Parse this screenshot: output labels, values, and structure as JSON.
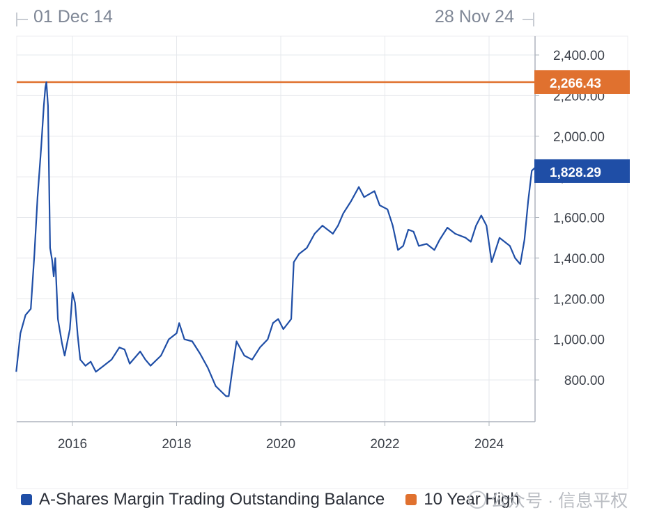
{
  "range": {
    "start_label": "01 Dec 14",
    "end_label": "28 Nov 24"
  },
  "colors": {
    "series": "#1f4ea6",
    "high": "#e0712f",
    "grid": "#e6e8ec",
    "axis_text": "#3a3f48"
  },
  "badges": {
    "high_value": "2,266.43",
    "last_value": "1,828.29"
  },
  "legend": [
    {
      "label": "A-Shares Margin Trading Outstanding Balance",
      "color": "#1f4ea6"
    },
    {
      "label": "10 Year High",
      "color": "#e0712f"
    }
  ],
  "watermark": "公众号 · 信息平权",
  "chart_data": {
    "type": "line",
    "x_ticks": [
      "2016",
      "2018",
      "2020",
      "2022",
      "2024"
    ],
    "y_ticks": [
      "800.00",
      "1,000.00",
      "1,200.00",
      "1,400.00",
      "1,600.00",
      "1,800.00",
      "2,000.00",
      "2,200.00",
      "2,400.00"
    ],
    "ylim": [
      620,
      2520
    ],
    "xlim": [
      2014.92,
      2024.92
    ],
    "grid": true,
    "legend_position": "bottom-left",
    "reference_line": {
      "name": "10 Year High",
      "value": 2266.43
    },
    "series": [
      {
        "name": "A-Shares Margin Trading Outstanding Balance",
        "points": [
          [
            2014.92,
            840
          ],
          [
            2015.0,
            1030
          ],
          [
            2015.1,
            1120
          ],
          [
            2015.2,
            1150
          ],
          [
            2015.27,
            1420
          ],
          [
            2015.33,
            1700
          ],
          [
            2015.4,
            1950
          ],
          [
            2015.45,
            2150
          ],
          [
            2015.48,
            2240
          ],
          [
            2015.5,
            2266
          ],
          [
            2015.53,
            2150
          ],
          [
            2015.57,
            1450
          ],
          [
            2015.61,
            1390
          ],
          [
            2015.64,
            1310
          ],
          [
            2015.67,
            1400
          ],
          [
            2015.72,
            1100
          ],
          [
            2015.8,
            980
          ],
          [
            2015.85,
            920
          ],
          [
            2015.95,
            1050
          ],
          [
            2016.0,
            1230
          ],
          [
            2016.05,
            1180
          ],
          [
            2016.1,
            1020
          ],
          [
            2016.15,
            900
          ],
          [
            2016.25,
            870
          ],
          [
            2016.35,
            890
          ],
          [
            2016.45,
            840
          ],
          [
            2016.6,
            870
          ],
          [
            2016.75,
            900
          ],
          [
            2016.9,
            960
          ],
          [
            2017.0,
            950
          ],
          [
            2017.1,
            880
          ],
          [
            2017.3,
            940
          ],
          [
            2017.4,
            900
          ],
          [
            2017.5,
            870
          ],
          [
            2017.7,
            920
          ],
          [
            2017.85,
            1000
          ],
          [
            2018.0,
            1030
          ],
          [
            2018.05,
            1080
          ],
          [
            2018.15,
            1000
          ],
          [
            2018.3,
            990
          ],
          [
            2018.45,
            930
          ],
          [
            2018.6,
            860
          ],
          [
            2018.75,
            770
          ],
          [
            2018.95,
            720
          ],
          [
            2019.0,
            720
          ],
          [
            2019.07,
            850
          ],
          [
            2019.15,
            990
          ],
          [
            2019.3,
            920
          ],
          [
            2019.45,
            900
          ],
          [
            2019.6,
            960
          ],
          [
            2019.75,
            1000
          ],
          [
            2019.85,
            1080
          ],
          [
            2019.95,
            1100
          ],
          [
            2020.05,
            1050
          ],
          [
            2020.2,
            1100
          ],
          [
            2020.25,
            1380
          ],
          [
            2020.35,
            1420
          ],
          [
            2020.5,
            1450
          ],
          [
            2020.65,
            1520
          ],
          [
            2020.8,
            1560
          ],
          [
            2021.0,
            1520
          ],
          [
            2021.1,
            1560
          ],
          [
            2021.2,
            1620
          ],
          [
            2021.35,
            1680
          ],
          [
            2021.5,
            1750
          ],
          [
            2021.6,
            1700
          ],
          [
            2021.8,
            1730
          ],
          [
            2021.9,
            1660
          ],
          [
            2022.05,
            1640
          ],
          [
            2022.15,
            1560
          ],
          [
            2022.25,
            1440
          ],
          [
            2022.35,
            1460
          ],
          [
            2022.45,
            1540
          ],
          [
            2022.55,
            1530
          ],
          [
            2022.65,
            1460
          ],
          [
            2022.8,
            1470
          ],
          [
            2022.95,
            1440
          ],
          [
            2023.05,
            1490
          ],
          [
            2023.2,
            1550
          ],
          [
            2023.35,
            1520
          ],
          [
            2023.55,
            1500
          ],
          [
            2023.65,
            1480
          ],
          [
            2023.75,
            1560
          ],
          [
            2023.85,
            1610
          ],
          [
            2023.95,
            1560
          ],
          [
            2024.05,
            1380
          ],
          [
            2024.1,
            1420
          ],
          [
            2024.2,
            1500
          ],
          [
            2024.3,
            1480
          ],
          [
            2024.4,
            1460
          ],
          [
            2024.5,
            1400
          ],
          [
            2024.6,
            1370
          ],
          [
            2024.68,
            1490
          ],
          [
            2024.75,
            1680
          ],
          [
            2024.82,
            1830
          ],
          [
            2024.88,
            1845
          ],
          [
            2024.92,
            1828
          ]
        ]
      }
    ]
  }
}
